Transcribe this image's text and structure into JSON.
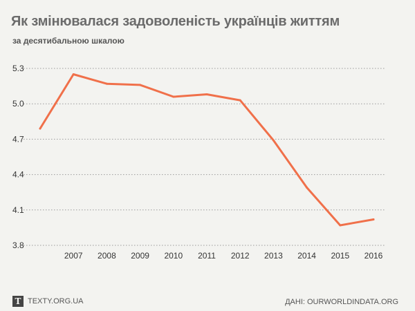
{
  "header": {
    "title": "Як змінювалася задоволеність українців життям",
    "subtitle": "за десятибальною шкалою"
  },
  "footer": {
    "brand_logo_letter": "T",
    "brand_text": "TEXTY.ORG.UA",
    "source": "ДАНІ: OURWORLDINDATA.ORG"
  },
  "colors": {
    "line": "#f0704a",
    "grid": "#9a9a9a",
    "background": "#f3f3f0"
  },
  "chart_data": {
    "type": "line",
    "title": "Як змінювалася задоволеність українців життям",
    "subtitle": "за десятибальною шкалою",
    "xlabel": "",
    "ylabel": "",
    "x": [
      2006,
      2007,
      2008,
      2009,
      2010,
      2011,
      2012,
      2013,
      2014,
      2015,
      2016
    ],
    "x_tick_labels": [
      "2007",
      "2008",
      "2009",
      "2010",
      "2011",
      "2012",
      "2013",
      "2014",
      "2015",
      "2016"
    ],
    "series": [
      {
        "values": [
          4.79,
          5.25,
          5.17,
          5.16,
          5.06,
          5.08,
          5.03,
          4.69,
          4.29,
          3.97,
          4.02
        ]
      }
    ],
    "y_ticks": [
      3.8,
      4.1,
      4.4,
      4.7,
      5.0,
      5.3
    ],
    "y_tick_labels": [
      "3.8",
      "4.1",
      "4.4",
      "4.7",
      "5.0",
      "5.3"
    ],
    "ylim": [
      3.8,
      5.3
    ],
    "xlim": [
      2006,
      2016
    ],
    "grid": "horizontal-dotted",
    "legend": "none"
  }
}
